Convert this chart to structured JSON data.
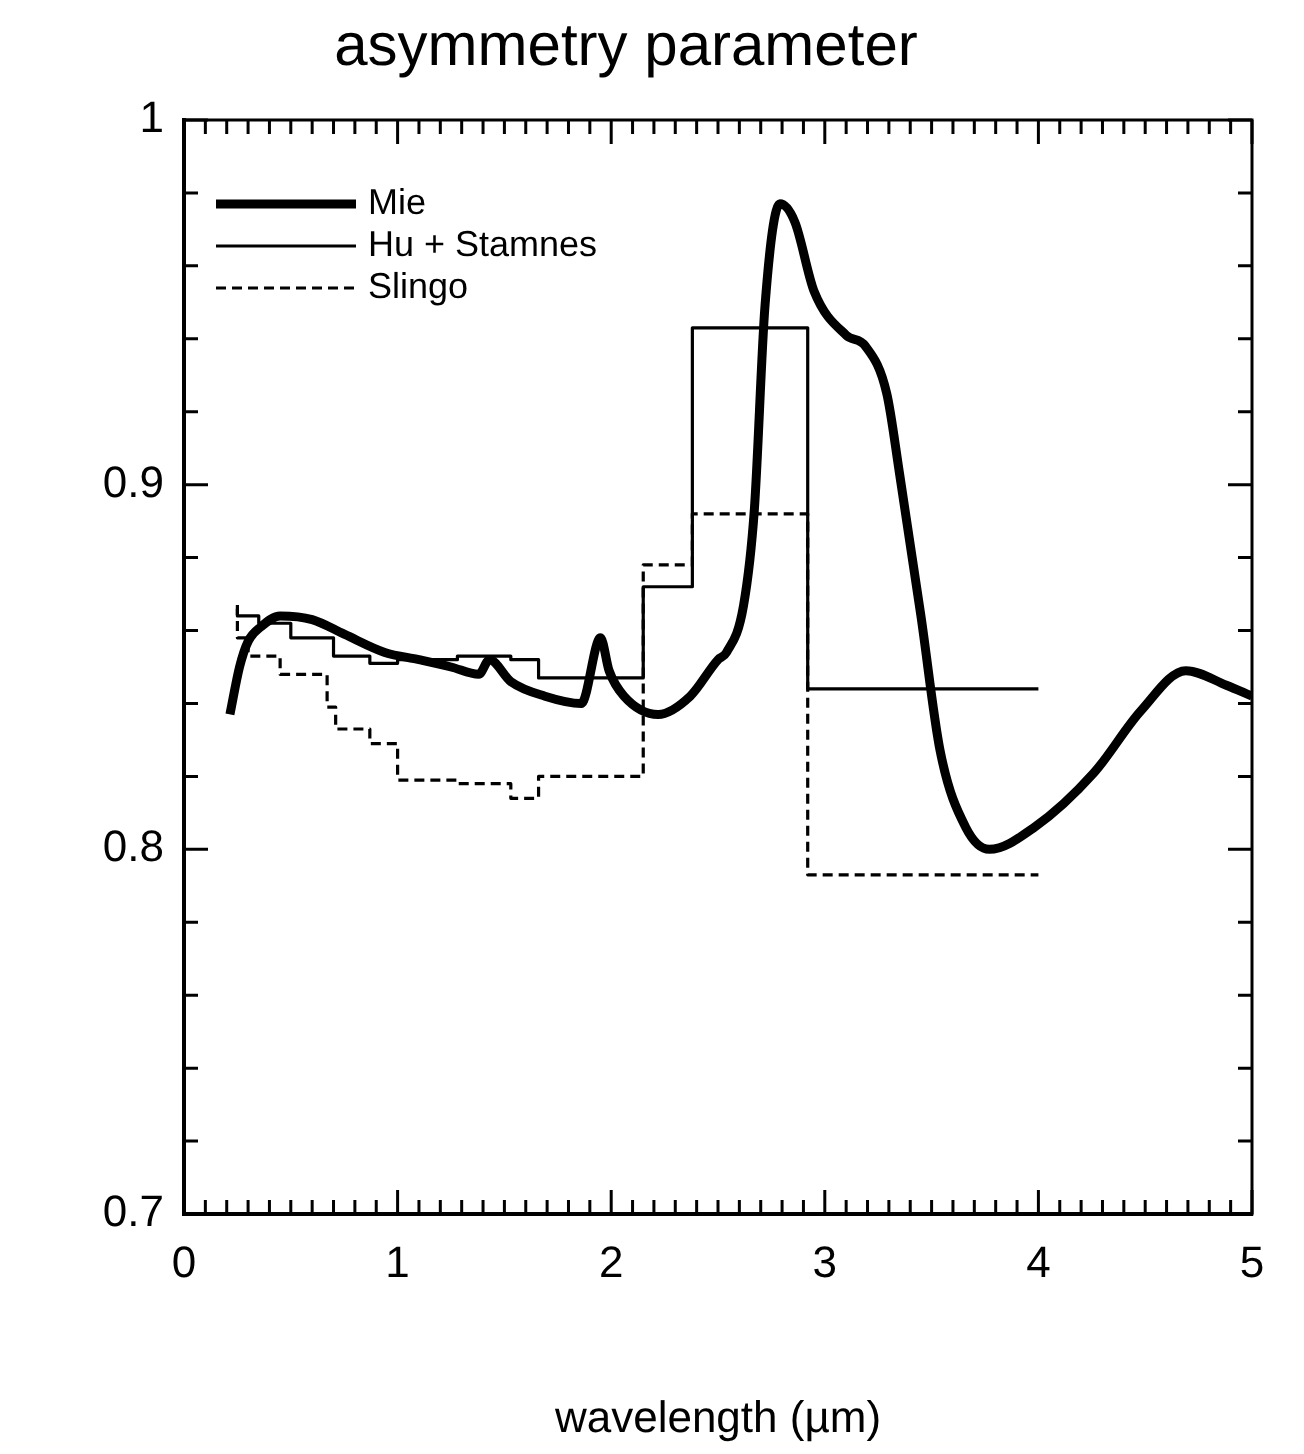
{
  "chart_data": {
    "type": "line",
    "title": "asymmetry parameter",
    "xlabel": "wavelength (µm)",
    "xlim": [
      0,
      5
    ],
    "xticks": [
      0,
      1,
      2,
      3,
      4,
      5
    ],
    "ylim": [
      0.7,
      1
    ],
    "yticks": [
      0.7,
      0.8,
      0.9,
      1
    ],
    "grid": false,
    "legend": "top left",
    "marker": "none",
    "series": [
      {
        "name": "Mie",
        "color": "#000000",
        "line_style": "solid",
        "x": [
          0.215,
          0.26,
          0.3,
          0.36,
          0.45,
          0.6,
          0.75,
          0.94,
          1.1,
          1.25,
          1.38,
          1.43,
          1.53,
          1.69,
          1.86,
          1.95,
          1.99,
          2.06,
          2.22,
          2.37,
          2.5,
          2.54,
          2.62,
          2.67,
          2.72,
          2.79,
          2.86,
          2.95,
          3.1,
          3.19,
          3.29,
          3.35,
          3.45,
          3.54,
          3.66,
          3.77,
          3.98,
          4.26,
          4.48,
          4.69,
          4.88,
          5.0
        ],
        "values": [
          0.837,
          0.85,
          0.857,
          0.861,
          0.864,
          0.863,
          0.859,
          0.854,
          0.852,
          0.85,
          0.848,
          0.852,
          0.846,
          0.842,
          0.84,
          0.858,
          0.849,
          0.842,
          0.837,
          0.842,
          0.852,
          0.854,
          0.867,
          0.893,
          0.949,
          0.977,
          0.972,
          0.953,
          0.941,
          0.938,
          0.925,
          0.903,
          0.864,
          0.827,
          0.806,
          0.8,
          0.806,
          0.821,
          0.838,
          0.849,
          0.845,
          0.842
        ]
      },
      {
        "name": "Hu + Stamnes",
        "type": "step",
        "color": "#000000",
        "line_style": "solid",
        "x": [
          0.25,
          0.35,
          0.5,
          0.7,
          0.87,
          1.0,
          1.28,
          1.53,
          1.66,
          2.15,
          2.38,
          2.92,
          3.43,
          4.0
        ],
        "values": [
          0.866,
          0.864,
          0.862,
          0.858,
          0.853,
          0.851,
          0.852,
          0.853,
          0.852,
          0.847,
          0.872,
          0.943,
          0.844,
          0.844
        ]
      },
      {
        "name": "Slingo",
        "type": "step",
        "color": "#000000",
        "line_style": "dashed",
        "x": [
          0.25,
          0.3,
          0.45,
          0.67,
          0.71,
          0.87,
          1.0,
          1.28,
          1.53,
          1.66,
          2.15,
          2.38,
          2.92,
          3.43,
          4.0
        ],
        "values": [
          0.867,
          0.858,
          0.853,
          0.848,
          0.839,
          0.833,
          0.829,
          0.819,
          0.818,
          0.814,
          0.82,
          0.878,
          0.892,
          0.793,
          0.793
        ]
      }
    ]
  }
}
